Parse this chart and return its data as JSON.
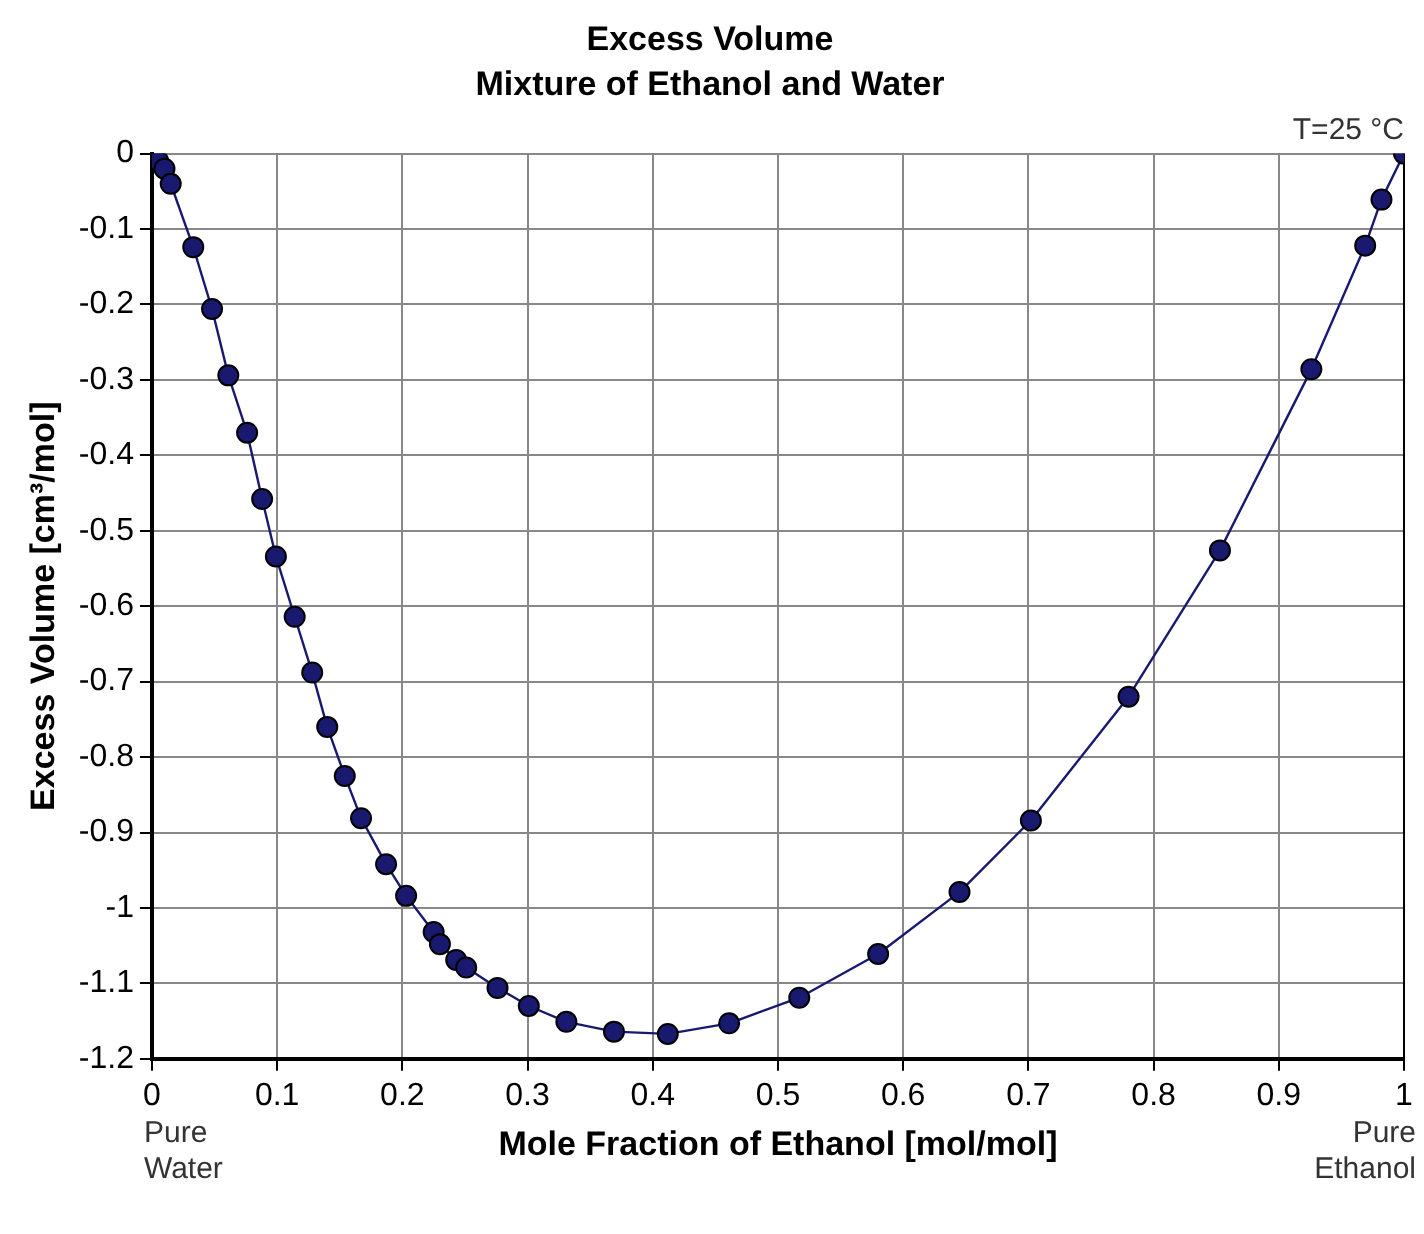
{
  "chart_data": {
    "type": "line",
    "title": "Excess Volume",
    "subtitle": "Mixture of Ethanol and Water",
    "xlabel": "Mole Fraction of Ethanol [mol/mol]",
    "ylabel": "Excess Volume [cm³/mol]",
    "annotations": [
      "T=25 °C",
      "Pure Water",
      "Pure Ethanol"
    ],
    "x": [
      0,
      0.005,
      0.01,
      0.015,
      0.033,
      0.048,
      0.061,
      0.076,
      0.088,
      0.099,
      0.114,
      0.128,
      0.14,
      0.154,
      0.167,
      0.187,
      0.203,
      0.225,
      0.23,
      0.243,
      0.251,
      0.276,
      0.301,
      0.331,
      0.369,
      0.412,
      0.461,
      0.517,
      0.58,
      0.645,
      0.702,
      0.78,
      0.853,
      0.926,
      0.969,
      0.982,
      1
    ],
    "series": [
      {
        "color": "#191970",
        "values": [
          0,
          -0.01,
          -0.02,
          -0.04,
          -0.124,
          -0.206,
          -0.294,
          -0.37,
          -0.458,
          -0.534,
          -0.614,
          -0.688,
          -0.76,
          -0.825,
          -0.881,
          -0.942,
          -0.984,
          -1.032,
          -1.048,
          -1.069,
          -1.079,
          -1.106,
          -1.13,
          -1.151,
          -1.164,
          -1.167,
          -1.153,
          -1.119,
          -1.061,
          -0.979,
          -0.884,
          -0.72,
          -0.526,
          -0.286,
          -0.122,
          -0.061,
          0
        ]
      }
    ],
    "xlim": [
      0,
      1
    ],
    "xticks": [
      0,
      0.1,
      0.2,
      0.3,
      0.4,
      0.5,
      0.6,
      0.7,
      0.8,
      0.9,
      1
    ],
    "ylim": [
      -1.2,
      0
    ],
    "yticks": [
      0,
      -0.1,
      -0.2,
      -0.3,
      -0.4,
      -0.5,
      -0.6,
      -0.7,
      -0.8,
      -0.9,
      -1,
      -1.1,
      -1.2
    ],
    "grid": true,
    "marker": "circle",
    "line_style": "solid",
    "legend": false
  }
}
